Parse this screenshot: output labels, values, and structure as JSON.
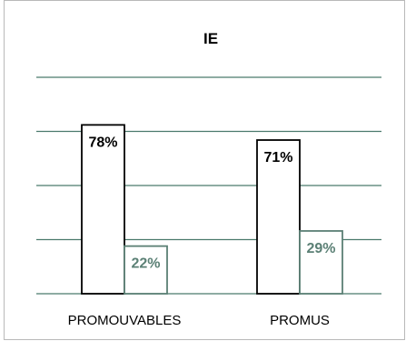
{
  "chart_data": {
    "type": "bar",
    "title": "IE",
    "categories": [
      "PROMOUVABLES",
      "PROMUS"
    ],
    "series": [
      {
        "values": [
          78,
          71
        ],
        "labels": [
          "78%",
          "71%"
        ],
        "color": "#000000"
      },
      {
        "values": [
          22,
          29
        ],
        "labels": [
          "22%",
          "29%"
        ],
        "color": "#5b8075"
      }
    ],
    "ylim": [
      0,
      100
    ],
    "grid": true,
    "gridline_color": "#4a7a6c",
    "xlabel": "",
    "ylabel": ""
  }
}
